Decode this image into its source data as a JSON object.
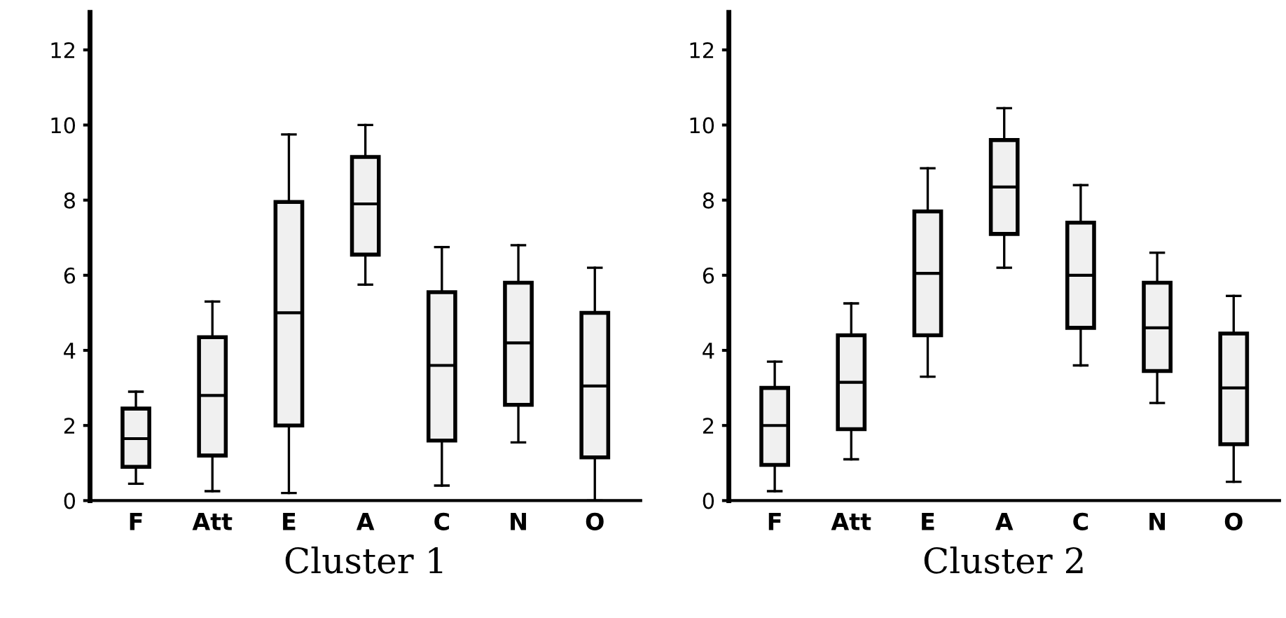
{
  "chart_data": [
    {
      "type": "box",
      "xlabel": "Cluster 1",
      "categories": [
        "F",
        "Att",
        "E",
        "A",
        "C",
        "N",
        "O"
      ],
      "color": "#f0f0f0",
      "ylim": [
        0,
        13
      ],
      "yticks": [
        0,
        2,
        4,
        6,
        8,
        10,
        12
      ],
      "grid": false,
      "boxes": [
        {
          "low": 0.45,
          "q1": 0.9,
          "median": 1.65,
          "q3": 2.45,
          "high": 2.9
        },
        {
          "low": 0.25,
          "q1": 1.2,
          "median": 2.8,
          "q3": 4.35,
          "high": 5.3
        },
        {
          "low": 0.2,
          "q1": 2.0,
          "median": 5.0,
          "q3": 7.95,
          "high": 9.75
        },
        {
          "low": 5.75,
          "q1": 6.55,
          "median": 7.9,
          "q3": 9.15,
          "high": 10.0
        },
        {
          "low": 0.4,
          "q1": 1.6,
          "median": 3.6,
          "q3": 5.55,
          "high": 6.75
        },
        {
          "low": 1.55,
          "q1": 2.55,
          "median": 4.2,
          "q3": 5.8,
          "high": 6.8
        },
        {
          "low": 0.0,
          "q1": 1.15,
          "median": 3.05,
          "q3": 5.0,
          "high": 6.2
        }
      ]
    },
    {
      "type": "box",
      "xlabel": "Cluster 2",
      "categories": [
        "F",
        "Att",
        "E",
        "A",
        "C",
        "N",
        "O"
      ],
      "color": "#f0f0f0",
      "ylim": [
        0,
        13
      ],
      "yticks": [
        0,
        2,
        4,
        6,
        8,
        10,
        12
      ],
      "grid": false,
      "boxes": [
        {
          "low": 0.25,
          "q1": 0.95,
          "median": 2.0,
          "q3": 3.0,
          "high": 3.7
        },
        {
          "low": 1.1,
          "q1": 1.9,
          "median": 3.15,
          "q3": 4.4,
          "high": 5.25
        },
        {
          "low": 3.3,
          "q1": 4.4,
          "median": 6.05,
          "q3": 7.7,
          "high": 8.85
        },
        {
          "low": 6.2,
          "q1": 7.1,
          "median": 8.35,
          "q3": 9.6,
          "high": 10.45
        },
        {
          "low": 3.6,
          "q1": 4.6,
          "median": 6.0,
          "q3": 7.4,
          "high": 8.4
        },
        {
          "low": 2.6,
          "q1": 3.45,
          "median": 4.6,
          "q3": 5.8,
          "high": 6.6
        },
        {
          "low": 0.5,
          "q1": 1.5,
          "median": 3.0,
          "q3": 4.45,
          "high": 5.45
        }
      ]
    }
  ]
}
